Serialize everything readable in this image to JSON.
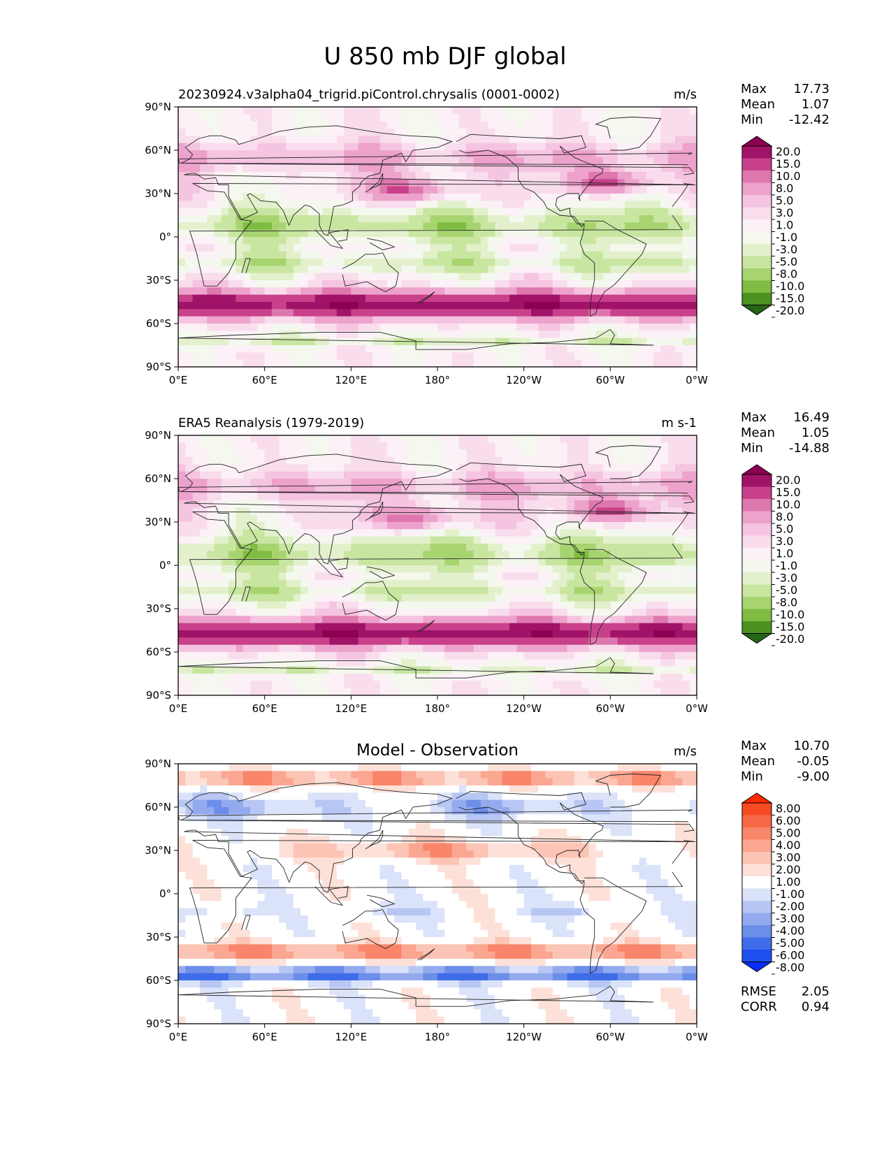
{
  "figure_title": "U 850 mb DJF global",
  "x_ticks": [
    "0°E",
    "60°E",
    "120°E",
    "180°",
    "120°W",
    "60°W",
    "0°W"
  ],
  "y_ticks": [
    "90°N",
    "60°N",
    "30°N",
    "0°",
    "30°S",
    "60°S",
    "90°S"
  ],
  "stat_labels": {
    "max": "Max",
    "mean": "Mean",
    "min": "Min",
    "rmse": "RMSE",
    "corr": "CORR"
  },
  "palettes": {
    "wind": [
      "#276419",
      "#4d9221",
      "#7fbc41",
      "#a8d470",
      "#c8e6a0",
      "#e2f1cc",
      "#f4f8ee",
      "#fbf1f6",
      "#f9dded",
      "#f5c4e0",
      "#eda2cc",
      "#de77ae",
      "#c8418a",
      "#a01368",
      "#8e0152"
    ],
    "diff": [
      "#0a2eff",
      "#1e50f0",
      "#3f6ce8",
      "#6b8ee8",
      "#93aaee",
      "#b7c6f3",
      "#dbe3fa",
      "#ffffff",
      "#fde1d9",
      "#fcc4b4",
      "#fba690",
      "#f9856a",
      "#f76846",
      "#f54a22",
      "#ff2a00"
    ]
  },
  "chart_data": [
    {
      "type": "heatmap",
      "title_left": "20230924.v3alpha04_trigrid.piControl.chrysalis (0001-0002)",
      "units": "m/s",
      "stats": {
        "max": "17.73",
        "mean": "1.07",
        "min": "-12.42"
      },
      "colorbar_levels": [
        "20.0",
        "15.0",
        "10.0",
        "8.0",
        "5.0",
        "3.0",
        "1.0",
        "-1.0",
        "-3.0",
        "-5.0",
        "-8.0",
        "-10.0",
        "-15.0",
        "-20.0"
      ],
      "x_range": [
        0,
        360
      ],
      "y_range": [
        -90,
        90
      ],
      "palette": "wind"
    },
    {
      "type": "heatmap",
      "title_left": "ERA5 Reanalysis (1979-2019)",
      "units": "m s-1",
      "stats": {
        "max": "16.49",
        "mean": "1.05",
        "min": "-14.88"
      },
      "colorbar_levels": [
        "20.0",
        "15.0",
        "10.0",
        "8.0",
        "5.0",
        "3.0",
        "1.0",
        "-1.0",
        "-3.0",
        "-5.0",
        "-8.0",
        "-10.0",
        "-15.0",
        "-20.0"
      ],
      "x_range": [
        0,
        360
      ],
      "y_range": [
        -90,
        90
      ],
      "palette": "wind"
    },
    {
      "type": "heatmap",
      "title_center": "Model - Observation",
      "units": "m/s",
      "stats": {
        "max": "10.70",
        "mean": "-0.05",
        "min": "-9.00"
      },
      "extra_stats": {
        "rmse": "2.05",
        "corr": "0.94"
      },
      "colorbar_levels": [
        "8.00",
        "6.00",
        "5.00",
        "4.00",
        "3.00",
        "2.00",
        "1.00",
        "-1.00",
        "-2.00",
        "-3.00",
        "-4.00",
        "-5.00",
        "-6.00",
        "-8.00"
      ],
      "x_range": [
        0,
        360
      ],
      "y_range": [
        -90,
        90
      ],
      "palette": "diff"
    }
  ]
}
